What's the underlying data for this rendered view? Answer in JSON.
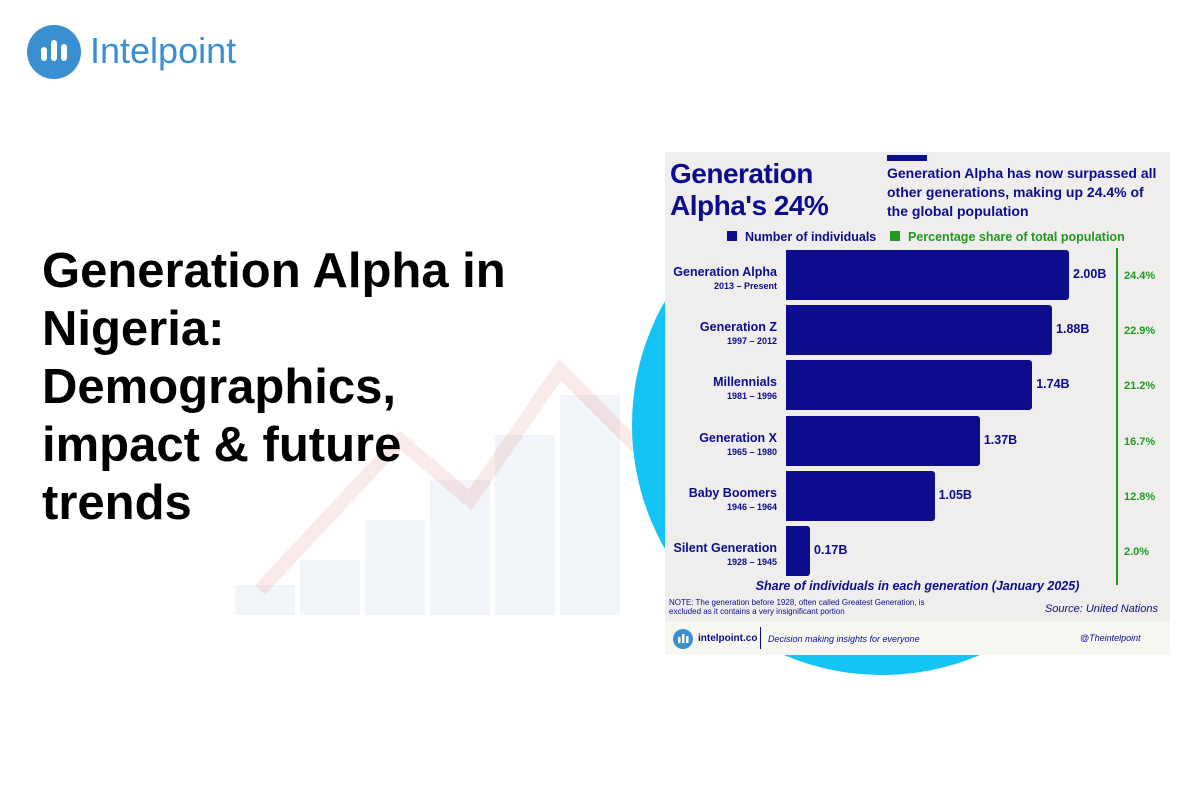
{
  "brand": "Intelpoint",
  "headline": "Generation Alpha in Nigeria: Demographics, impact & future trends",
  "chart_data": {
    "type": "bar",
    "orientation": "horizontal",
    "title": "Generation Alpha's 24%",
    "subtitle": "Generation Alpha has now surpassed all other generations, making up 24.4% of the global population",
    "categories": [
      "Generation Alpha",
      "Generation Z",
      "Millennials",
      "Generation X",
      "Baby Boomers",
      "Silent Generation"
    ],
    "category_periods": [
      "2013 – Present",
      "1997 – 2012",
      "1981 – 1996",
      "1965 – 1980",
      "1946 – 1964",
      "1928 – 1945"
    ],
    "series": [
      {
        "name": "Number of individuals",
        "color": "#0c0c8c",
        "values": [
          2.0,
          1.88,
          1.74,
          1.37,
          1.05,
          0.17
        ],
        "value_labels": [
          "2.00B",
          "1.88B",
          "1.74B",
          "1.37B",
          "1.05B",
          "0.17B"
        ]
      },
      {
        "name": "Percentage share of total population",
        "color": "#1f9a1f",
        "values": [
          24.4,
          22.9,
          21.2,
          16.7,
          12.8,
          2.0
        ],
        "value_labels": [
          "24.4%",
          "22.9%",
          "21.2%",
          "16.7%",
          "12.8%",
          "2.0%"
        ]
      }
    ],
    "xlabel": "Share of individuals in each generation (January 2025)",
    "note": "NOTE: The generation before 1928, often called Greatest Generation, is excluded as it contains a very insignificant portion",
    "source": "Source: United Nations",
    "footer": {
      "site": "intelpoint.co",
      "tagline": "Decision making insights for everyone",
      "handle": "@Theintelpoint"
    }
  }
}
